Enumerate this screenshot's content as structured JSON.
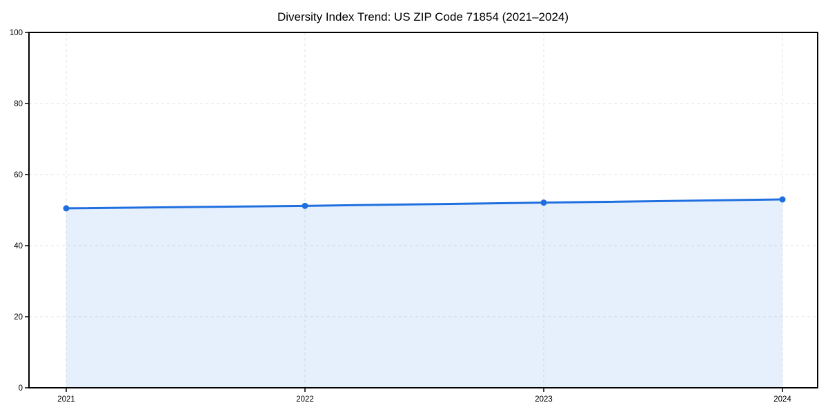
{
  "chart_data": {
    "type": "area",
    "title": "Diversity Index Trend: US ZIP Code 71854 (2021–2024)",
    "x": [
      "2021",
      "2022",
      "2023",
      "2024"
    ],
    "series": [
      {
        "name": "Diversity Index",
        "values": [
          50.5,
          51.2,
          52.1,
          53.0
        ]
      }
    ],
    "xlabel": "",
    "ylabel": "",
    "ylim": [
      0,
      100
    ],
    "yticks": [
      0,
      20,
      40,
      60,
      80,
      100
    ],
    "grid": true,
    "grid_style": "dashed",
    "legend": false,
    "colors": {
      "line": "#1f6fe0",
      "marker": "#1f6fe0",
      "fill": "#1f6fe0",
      "fill_opacity": 0.11,
      "grid": "#e2e2e2",
      "axis": "#000000",
      "text": "#000000",
      "background": "#ffffff"
    }
  }
}
